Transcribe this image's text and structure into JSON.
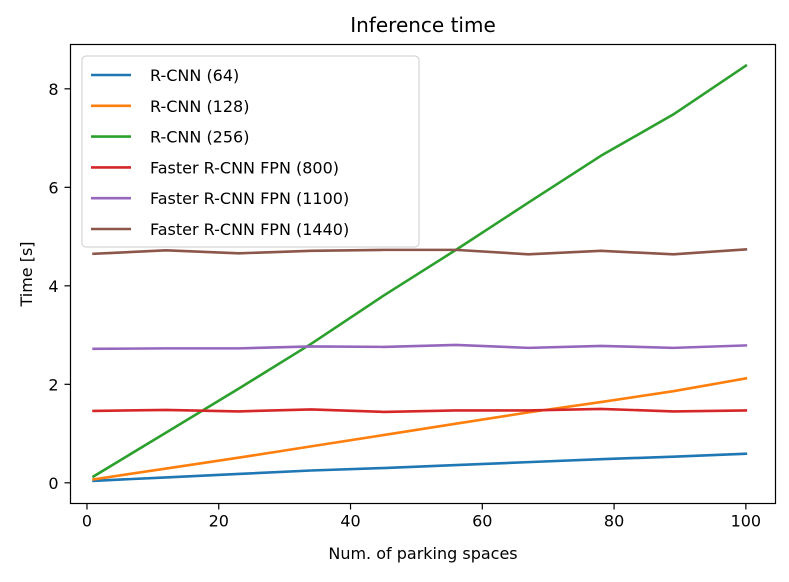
{
  "chart_data": {
    "type": "line",
    "title": "Inference time",
    "xlabel": "Num. of parking spaces",
    "ylabel": "Time [s]",
    "xlim": [
      -2.5,
      104.5
    ],
    "ylim": [
      -0.42,
      8.9
    ],
    "xticks": [
      0,
      20,
      40,
      60,
      80,
      100
    ],
    "yticks": [
      0,
      2,
      4,
      6,
      8
    ],
    "grid": false,
    "legend_position": "top-left",
    "x": [
      1,
      12,
      23,
      34,
      45,
      56,
      67,
      78,
      89,
      100
    ],
    "series": [
      {
        "name": "R-CNN (64)",
        "color": "#1f77b4",
        "values": [
          0.04,
          0.11,
          0.18,
          0.25,
          0.3,
          0.36,
          0.42,
          0.48,
          0.53,
          0.59
        ]
      },
      {
        "name": "R-CNN (128)",
        "color": "#ff7f0e",
        "values": [
          0.07,
          0.29,
          0.51,
          0.74,
          0.97,
          1.2,
          1.43,
          1.64,
          1.86,
          2.12
        ]
      },
      {
        "name": "R-CNN (256)",
        "color": "#2ca02c",
        "values": [
          0.13,
          1.02,
          1.91,
          2.82,
          3.8,
          4.73,
          5.69,
          6.64,
          7.48,
          8.47
        ]
      },
      {
        "name": "Faster R-CNN FPN (800)",
        "color": "#d62728",
        "values": [
          1.46,
          1.48,
          1.45,
          1.49,
          1.44,
          1.47,
          1.47,
          1.5,
          1.45,
          1.47
        ]
      },
      {
        "name": "Faster R-CNN FPN (1100)",
        "color": "#9467bd",
        "values": [
          2.72,
          2.73,
          2.73,
          2.77,
          2.76,
          2.8,
          2.74,
          2.78,
          2.74,
          2.79
        ]
      },
      {
        "name": "Faster R-CNN FPN (1440)",
        "color": "#8c564b",
        "values": [
          4.65,
          4.72,
          4.66,
          4.71,
          4.73,
          4.73,
          4.64,
          4.71,
          4.64,
          4.74
        ]
      }
    ]
  }
}
